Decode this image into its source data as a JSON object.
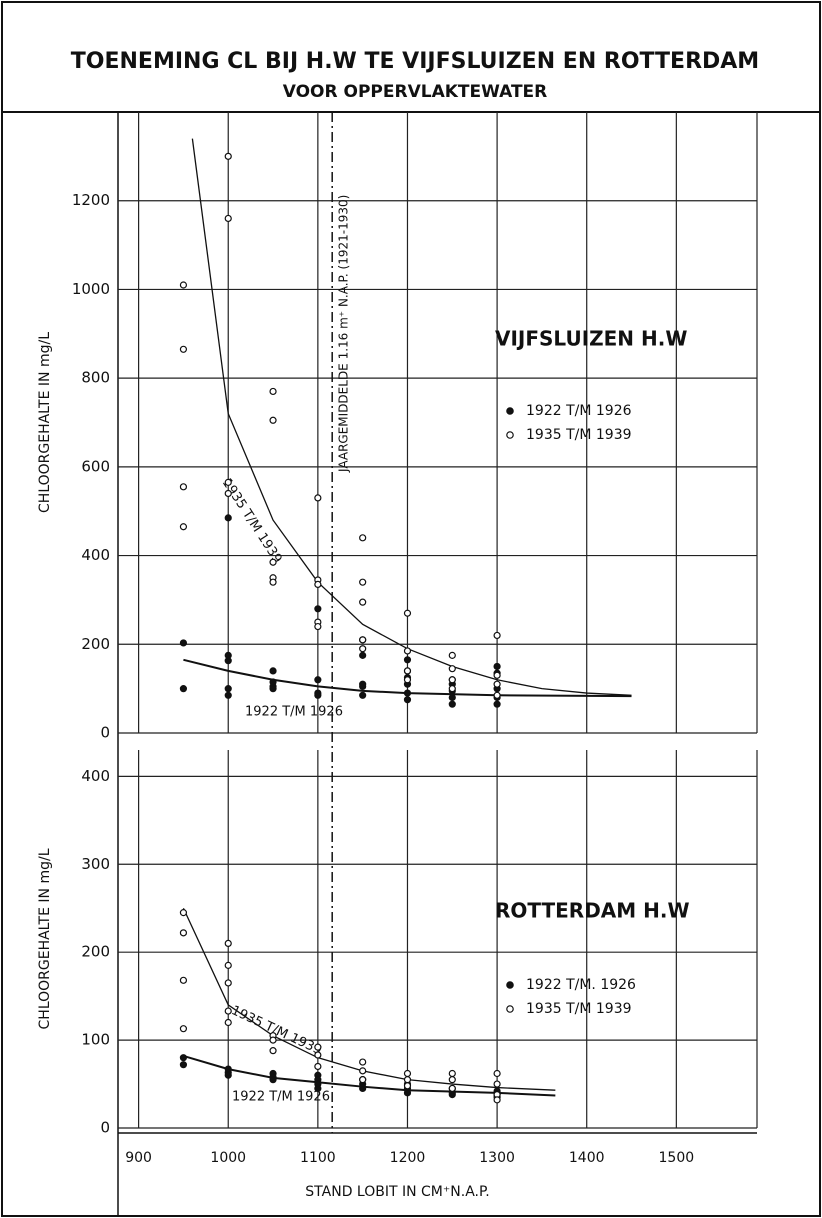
{
  "header": {
    "title": "TOENEMING CL BIJ H.W TE VIJFSLUIZEN EN ROTTERDAM",
    "subtitle": "VOOR OPPERVLAKTEWATER"
  },
  "reference_line": {
    "x": 1116,
    "label": "JAARGEMIDDELDE 1.16 m⁺ N.A.P. (1921-1930)"
  },
  "chart_data": [
    {
      "type": "scatter",
      "title": "VIJFSLUIZEN H.W",
      "ylabel": "CHLOORGEHALTE IN mg/L",
      "xlim": [
        877,
        1590
      ],
      "ylim": [
        0,
        1400
      ],
      "yticks": [
        0,
        200,
        400,
        600,
        800,
        1000,
        1200
      ],
      "grid": true,
      "series": [
        {
          "name": "1922 T/M 1926",
          "color": "#111111",
          "filled": true,
          "x": [
            950,
            950,
            1000,
            1000,
            1000,
            1000,
            1000,
            1050,
            1050,
            1050,
            1050,
            1100,
            1100,
            1100,
            1100,
            1150,
            1150,
            1150,
            1150,
            1150,
            1200,
            1200,
            1200,
            1200,
            1200,
            1200,
            1250,
            1250,
            1250,
            1250,
            1250,
            1300,
            1300,
            1300,
            1300,
            1300
          ],
          "values": [
            203,
            100,
            485,
            175,
            163,
            100,
            85,
            140,
            115,
            105,
            100,
            280,
            120,
            90,
            85,
            210,
            175,
            110,
            105,
            85,
            165,
            140,
            125,
            110,
            90,
            75,
            120,
            110,
            95,
            80,
            65,
            150,
            135,
            100,
            80,
            65
          ]
        },
        {
          "name": "1935 T/M 1939",
          "color": "#111111",
          "filled": false,
          "x": [
            950,
            950,
            950,
            950,
            1000,
            1000,
            1000,
            1000,
            1050,
            1050,
            1050,
            1050,
            1050,
            1100,
            1100,
            1100,
            1100,
            1100,
            1150,
            1150,
            1150,
            1150,
            1150,
            1200,
            1200,
            1200,
            1200,
            1250,
            1250,
            1250,
            1250,
            1300,
            1300,
            1300,
            1300
          ],
          "values": [
            1010,
            865,
            555,
            465,
            1300,
            1160,
            565,
            540,
            770,
            705,
            385,
            350,
            340,
            530,
            345,
            335,
            250,
            240,
            440,
            340,
            295,
            210,
            190,
            270,
            185,
            140,
            120,
            175,
            145,
            120,
            100,
            220,
            130,
            110,
            85
          ]
        }
      ],
      "curves": [
        {
          "name": "1935 T/M 1939",
          "x": [
            960,
            1000,
            1050,
            1100,
            1150,
            1200,
            1250,
            1300,
            1350,
            1400,
            1450
          ],
          "values": [
            1340,
            720,
            480,
            340,
            245,
            190,
            150,
            120,
            100,
            90,
            85
          ]
        },
        {
          "name": "1922 T/M 1926",
          "x": [
            950,
            1000,
            1050,
            1100,
            1150,
            1200,
            1300,
            1450
          ],
          "values": [
            165,
            140,
            120,
            105,
            95,
            90,
            85,
            83
          ]
        }
      ]
    },
    {
      "type": "scatter",
      "title": "ROTTERDAM H.W",
      "ylabel": "CHLOORGEHALTE IN mg/L",
      "xlabel": "STAND LOBIT IN CM⁺N.A.P.",
      "xlim": [
        877,
        1590
      ],
      "ylim": [
        0,
        430
      ],
      "xticks": [
        900,
        1000,
        1100,
        1200,
        1300,
        1400,
        1500
      ],
      "yticks": [
        0,
        100,
        200,
        300,
        400
      ],
      "grid": true,
      "series": [
        {
          "name": "1922 T/M. 1926",
          "color": "#111111",
          "filled": true,
          "x": [
            950,
            950,
            1000,
            1000,
            1000,
            1050,
            1050,
            1050,
            1100,
            1100,
            1100,
            1100,
            1150,
            1150,
            1150,
            1200,
            1200,
            1200,
            1250,
            1250,
            1250,
            1300,
            1300,
            1300
          ],
          "values": [
            80,
            72,
            67,
            63,
            60,
            62,
            58,
            55,
            60,
            55,
            50,
            45,
            55,
            50,
            45,
            50,
            45,
            40,
            45,
            40,
            38,
            42,
            38,
            35
          ]
        },
        {
          "name": "1935 T/M 1939",
          "color": "#111111",
          "filled": false,
          "x": [
            950,
            950,
            950,
            950,
            1000,
            1000,
            1000,
            1000,
            1000,
            1050,
            1050,
            1050,
            1100,
            1100,
            1100,
            1150,
            1150,
            1150,
            1200,
            1200,
            1200,
            1250,
            1250,
            1250,
            1300,
            1300,
            1300,
            1300
          ],
          "values": [
            245,
            222,
            168,
            113,
            210,
            185,
            165,
            133,
            120,
            105,
            100,
            88,
            92,
            83,
            70,
            75,
            65,
            55,
            62,
            55,
            48,
            62,
            55,
            45,
            62,
            50,
            38,
            32
          ]
        }
      ],
      "curves": [
        {
          "name": "1935 T/M 1939",
          "x": [
            950,
            1000,
            1050,
            1100,
            1150,
            1200,
            1250,
            1300,
            1365
          ],
          "values": [
            250,
            140,
            105,
            80,
            65,
            55,
            50,
            46,
            43
          ]
        },
        {
          "name": "1922 T/M 1926",
          "x": [
            950,
            1000,
            1050,
            1100,
            1150,
            1200,
            1300,
            1365
          ],
          "values": [
            82,
            67,
            57,
            52,
            47,
            43,
            40,
            37
          ]
        }
      ]
    }
  ]
}
